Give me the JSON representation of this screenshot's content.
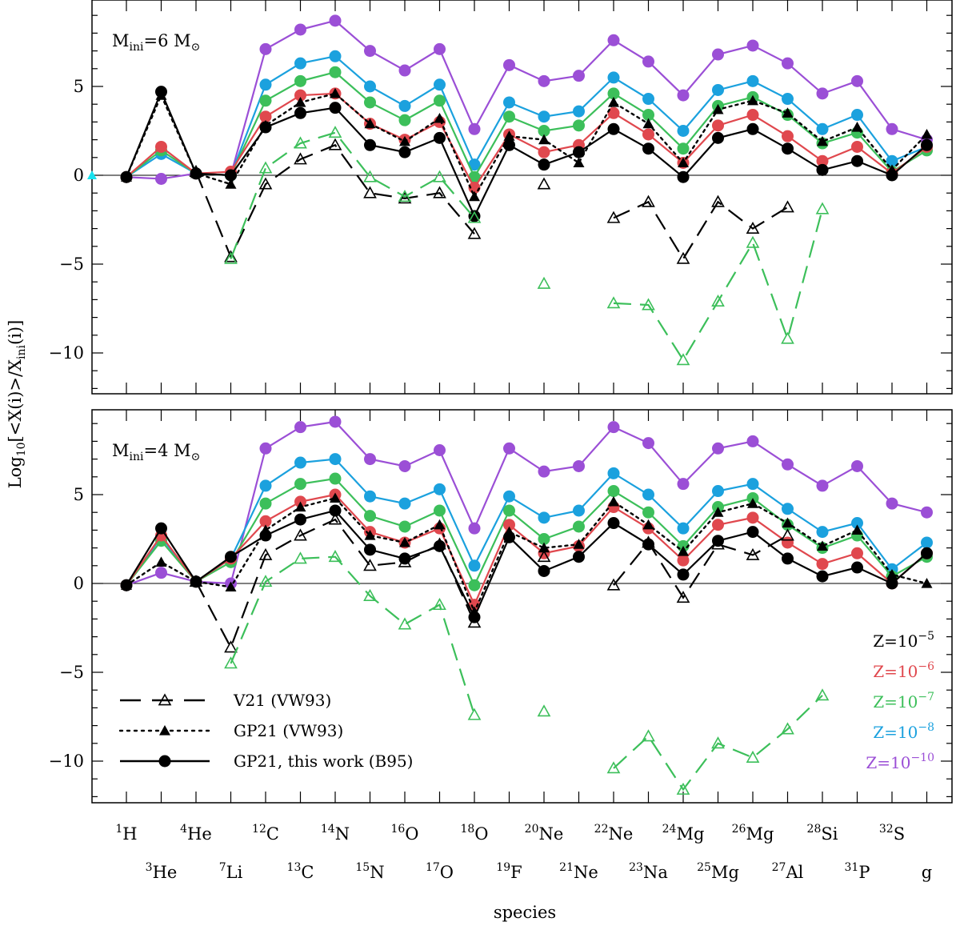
{
  "chart_data": {
    "type": "line",
    "xlabel": "species",
    "ylabel": "Log10[<X(i)>/Xini(i)]",
    "ylim": [
      -12.5,
      9.5
    ],
    "yticks": [
      -10,
      -5,
      0,
      5
    ],
    "species": [
      {
        "mass": "1",
        "el": "H"
      },
      {
        "mass": "3",
        "el": "He"
      },
      {
        "mass": "4",
        "el": "He"
      },
      {
        "mass": "7",
        "el": "Li"
      },
      {
        "mass": "12",
        "el": "C"
      },
      {
        "mass": "13",
        "el": "C"
      },
      {
        "mass": "14",
        "el": "N"
      },
      {
        "mass": "15",
        "el": "N"
      },
      {
        "mass": "16",
        "el": "O"
      },
      {
        "mass": "17",
        "el": "O"
      },
      {
        "mass": "18",
        "el": "O"
      },
      {
        "mass": "19",
        "el": "F"
      },
      {
        "mass": "20",
        "el": "Ne"
      },
      {
        "mass": "21",
        "el": "Ne"
      },
      {
        "mass": "22",
        "el": "Ne"
      },
      {
        "mass": "23",
        "el": "Na"
      },
      {
        "mass": "24",
        "el": "Mg"
      },
      {
        "mass": "25",
        "el": "Mg"
      },
      {
        "mass": "26",
        "el": "Mg"
      },
      {
        "mass": "27",
        "el": "Al"
      },
      {
        "mass": "28",
        "el": "Si"
      },
      {
        "mass": "31",
        "el": "P"
      },
      {
        "mass": "32",
        "el": "S"
      },
      {
        "mass": "",
        "el": "g"
      }
    ],
    "legend_styles": [
      {
        "label": "V21 (VW93)",
        "dash": "dashed",
        "marker": "open-triangle"
      },
      {
        "label": "GP21 (VW93)",
        "dash": "dotted",
        "marker": "filled-triangle"
      },
      {
        "label": "GP21, this work (B95)",
        "dash": "solid",
        "marker": "filled-circle"
      }
    ],
    "metallicity_legend": [
      {
        "base": "Z=10",
        "exp": "−5",
        "color": "#000000"
      },
      {
        "base": "Z=10",
        "exp": "−6",
        "color": "#e0484e"
      },
      {
        "base": "Z=10",
        "exp": "−7",
        "color": "#3cbf5a"
      },
      {
        "base": "Z=10",
        "exp": "−8",
        "color": "#1ba1de"
      },
      {
        "base": "Z=10",
        "exp": "−10",
        "color": "#9b4fd6"
      }
    ],
    "panels": [
      {
        "label_prefix": "M",
        "label_sub": "ini",
        "label_value": "=6",
        "label_unit": "M",
        "label_unit_symbol": "⊙",
        "series": [
          {
            "name": "GP21 B95 Z=1e-10",
            "color": "#9b4fd6",
            "style": "solid",
            "marker": "filled-circle",
            "values": [
              -0.1,
              -0.2,
              0.1,
              0.0,
              7.1,
              8.2,
              8.7,
              7.0,
              5.9,
              7.1,
              2.6,
              6.2,
              5.3,
              5.6,
              7.6,
              6.4,
              4.5,
              6.8,
              7.3,
              6.3,
              4.6,
              5.3,
              2.6,
              2.0
            ]
          },
          {
            "name": "GP21 B95 Z=1e-8",
            "color": "#1ba1de",
            "style": "solid",
            "marker": "filled-circle",
            "values": [
              -0.1,
              1.2,
              0.1,
              0.0,
              5.1,
              6.3,
              6.7,
              5.0,
              3.9,
              5.1,
              0.6,
              4.1,
              3.3,
              3.6,
              5.5,
              4.3,
              2.5,
              4.8,
              5.3,
              4.3,
              2.6,
              3.4,
              0.8,
              1.6
            ]
          },
          {
            "name": "GP21 B95 Z=1e-7",
            "color": "#3cbf5a",
            "style": "solid",
            "marker": "filled-circle",
            "values": [
              -0.1,
              1.4,
              0.1,
              0.0,
              4.2,
              5.3,
              5.8,
              4.1,
              3.1,
              4.2,
              -0.1,
              3.3,
              2.5,
              2.8,
              4.6,
              3.4,
              1.5,
              3.9,
              4.4,
              3.4,
              1.8,
              2.4,
              0.2,
              1.4
            ]
          },
          {
            "name": "GP21 B95 Z=1e-6",
            "color": "#e0484e",
            "style": "solid",
            "marker": "filled-circle",
            "values": [
              -0.1,
              1.6,
              0.1,
              0.2,
              3.3,
              4.5,
              4.6,
              2.9,
              2.0,
              3.0,
              -0.7,
              2.3,
              1.3,
              1.7,
              3.5,
              2.3,
              0.7,
              2.8,
              3.4,
              2.2,
              0.8,
              1.6,
              0.1,
              1.6
            ]
          },
          {
            "name": "GP21 B95 Z=1e-5",
            "color": "#000000",
            "style": "solid",
            "marker": "filled-circle",
            "values": [
              -0.1,
              4.7,
              0.1,
              0.0,
              2.7,
              3.5,
              3.8,
              1.7,
              1.3,
              2.1,
              -2.3,
              1.7,
              0.6,
              1.3,
              2.6,
              1.5,
              -0.1,
              2.1,
              2.6,
              1.5,
              0.3,
              0.8,
              0.0,
              1.7
            ]
          },
          {
            "name": "GP21 VW93 Z=1e-5",
            "color": "#000000",
            "style": "dotted",
            "marker": "filled-triangle",
            "values": [
              -0.1,
              4.5,
              0.1,
              -0.5,
              2.8,
              4.1,
              4.6,
              2.9,
              1.9,
              3.2,
              -1.2,
              2.2,
              2.0,
              0.7,
              4.1,
              2.9,
              0.7,
              3.7,
              4.2,
              3.5,
              1.9,
              2.7,
              0.3,
              2.3
            ]
          },
          {
            "name": "V21 VW93 Z=1e-5",
            "color": "#000000",
            "style": "dashed",
            "marker": "open-triangle",
            "values": [
              null,
              null,
              0.2,
              -4.6,
              -0.5,
              0.9,
              1.7,
              -1.0,
              -1.3,
              -1.0,
              -3.3,
              null,
              -0.5,
              null,
              -2.4,
              -1.5,
              -4.7,
              -1.5,
              -3.0,
              -1.8,
              null,
              null,
              null,
              null
            ]
          },
          {
            "name": "V21 VW93 Z=1e-7",
            "color": "#3cbf5a",
            "style": "dashed",
            "marker": "open-triangle",
            "values": [
              null,
              null,
              null,
              -4.7,
              0.4,
              1.8,
              2.4,
              -0.1,
              -1.2,
              -0.1,
              -2.4,
              null,
              -6.1,
              null,
              -7.2,
              -7.3,
              -10.4,
              -7.1,
              -3.8,
              -9.2,
              -1.9,
              null,
              null,
              null
            ]
          }
        ]
      },
      {
        "label_prefix": "M",
        "label_sub": "ini",
        "label_value": "=4",
        "label_unit": "M",
        "label_unit_symbol": "⊙",
        "series": [
          {
            "name": "GP21 B95 Z=1e-10",
            "color": "#9b4fd6",
            "style": "solid",
            "marker": "filled-circle",
            "values": [
              -0.1,
              0.6,
              0.1,
              0.0,
              7.6,
              8.8,
              9.1,
              7.0,
              6.6,
              7.5,
              3.1,
              7.6,
              6.3,
              6.6,
              8.8,
              7.9,
              5.6,
              7.6,
              8.0,
              6.7,
              5.5,
              6.6,
              4.5,
              4.0
            ]
          },
          {
            "name": "GP21 B95 Z=1e-8",
            "color": "#1ba1de",
            "style": "solid",
            "marker": "filled-circle",
            "values": [
              -0.1,
              2.6,
              0.1,
              1.4,
              5.5,
              6.8,
              7.0,
              4.9,
              4.5,
              5.3,
              1.0,
              4.9,
              3.7,
              4.1,
              6.2,
              5.0,
              3.1,
              5.2,
              5.6,
              4.2,
              2.9,
              3.4,
              0.8,
              2.3
            ]
          },
          {
            "name": "GP21 B95 Z=1e-7",
            "color": "#3cbf5a",
            "style": "solid",
            "marker": "filled-circle",
            "values": [
              -0.1,
              2.4,
              0.1,
              1.2,
              4.5,
              5.6,
              5.9,
              3.8,
              3.2,
              4.1,
              -0.1,
              4.1,
              2.5,
              3.2,
              5.2,
              4.0,
              2.1,
              4.3,
              4.8,
              3.3,
              2.0,
              2.7,
              0.4,
              1.5
            ]
          },
          {
            "name": "GP21 B95 Z=1e-6",
            "color": "#e0484e",
            "style": "solid",
            "marker": "filled-circle",
            "values": [
              -0.1,
              2.7,
              0.1,
              1.4,
              3.5,
              4.6,
              5.0,
              2.9,
              2.3,
              3.1,
              -1.2,
              3.3,
              1.7,
              2.1,
              4.3,
              3.1,
              1.3,
              3.3,
              3.7,
              2.3,
              1.1,
              1.7,
              0.0,
              1.7
            ]
          },
          {
            "name": "GP21 B95 Z=1e-5",
            "color": "#000000",
            "style": "solid",
            "marker": "filled-circle",
            "values": [
              -0.1,
              3.1,
              0.1,
              1.5,
              2.7,
              3.6,
              4.1,
              1.9,
              1.4,
              2.1,
              -1.9,
              2.6,
              0.7,
              1.5,
              3.4,
              2.2,
              0.5,
              2.4,
              2.9,
              1.4,
              0.4,
              0.9,
              0.0,
              1.7
            ]
          },
          {
            "name": "GP21 VW93 Z=1e-5",
            "color": "#000000",
            "style": "dotted",
            "marker": "filled-triangle",
            "values": [
              -0.1,
              1.2,
              0.1,
              -0.2,
              3.0,
              4.3,
              4.8,
              2.7,
              2.3,
              3.3,
              -1.6,
              2.9,
              2.0,
              2.2,
              4.6,
              3.3,
              1.8,
              4.0,
              4.5,
              3.4,
              2.1,
              3.0,
              0.5,
              0.0
            ]
          },
          {
            "name": "V21 VW93 Z=1e-5",
            "color": "#000000",
            "style": "dashed",
            "marker": "open-triangle",
            "values": [
              null,
              null,
              0.1,
              -3.6,
              1.6,
              2.7,
              3.6,
              1.0,
              1.2,
              2.2,
              -2.2,
              null,
              1.5,
              null,
              -0.1,
              2.3,
              -0.8,
              2.2,
              1.6,
              2.7,
              null,
              null,
              null,
              null
            ]
          },
          {
            "name": "V21 VW93 Z=1e-7",
            "color": "#3cbf5a",
            "style": "dashed",
            "marker": "open-triangle",
            "values": [
              null,
              null,
              null,
              -4.5,
              0.1,
              1.4,
              1.5,
              -0.7,
              -2.3,
              -1.2,
              -7.4,
              null,
              -7.2,
              null,
              -10.4,
              -8.6,
              -11.6,
              -9.0,
              -9.8,
              -8.2,
              -6.3,
              null,
              null,
              null
            ]
          }
        ]
      }
    ]
  }
}
